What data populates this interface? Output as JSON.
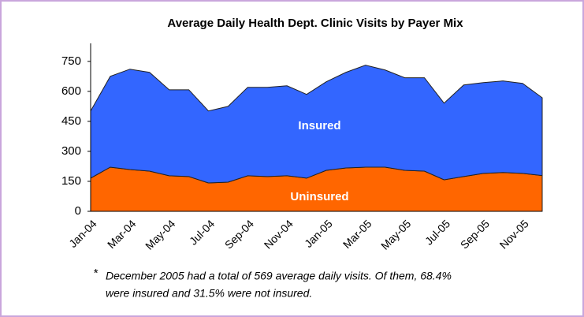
{
  "chart_data": {
    "type": "stacked_area",
    "title": "Average Daily Health Dept. Clinic Visits by Payer Mix",
    "categories": [
      "Jan-04",
      null,
      "Mar-04",
      null,
      "May-04",
      null,
      "Jul-04",
      null,
      "Sep-04",
      null,
      "Nov-04",
      null,
      "Jan-05",
      null,
      "Mar-05",
      null,
      "May-05",
      null,
      "Jul-05",
      null,
      "Sep-05",
      null,
      "Nov-05",
      null
    ],
    "series": [
      {
        "name": "Uninsured",
        "color": "#ff6600",
        "values": [
          166,
          221,
          209,
          201,
          178,
          174,
          142,
          146,
          178,
          174,
          178,
          166,
          205,
          217,
          221,
          221,
          205,
          201,
          158,
          174,
          190,
          194,
          190,
          179
        ]
      },
      {
        "name": "Insured",
        "color": "#3366ff",
        "values": [
          336,
          454,
          502,
          494,
          430,
          434,
          360,
          379,
          442,
          446,
          450,
          419,
          443,
          478,
          510,
          486,
          463,
          467,
          383,
          458,
          454,
          458,
          450,
          389
        ]
      }
    ],
    "ylim": [
      0,
      840
    ],
    "yticks": [
      0,
      150,
      300,
      450,
      600,
      750
    ],
    "footnote_marker": "*",
    "notes": [
      "December  2005 had a total of 569 average daily visits. Of them, 68.4%",
      "were insured and 31.5% were not insured."
    ]
  }
}
